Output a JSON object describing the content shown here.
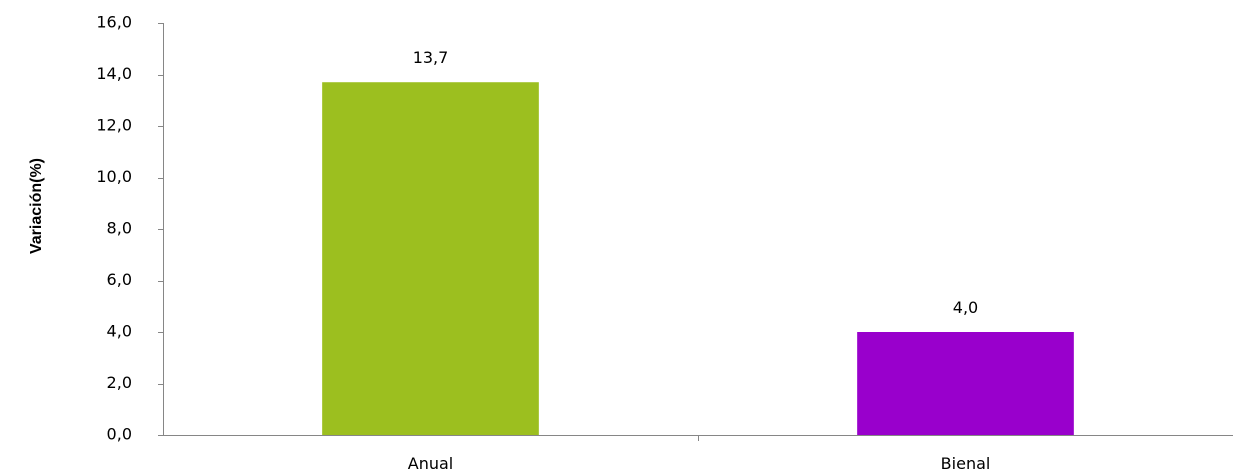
{
  "chart_data": {
    "type": "bar",
    "categories": [
      "Anual",
      "Bienal"
    ],
    "series": [
      {
        "values": [
          13.7,
          4.0
        ]
      }
    ],
    "data_labels": [
      "13,7",
      "4,0"
    ],
    "bar_colors": [
      "#9cbf1f",
      "#9900cc"
    ],
    "title": "",
    "xlabel": "",
    "ylabel": "Variación(%)",
    "ylim": [
      0,
      16
    ],
    "yticks": [
      0,
      2,
      4,
      6,
      8,
      10,
      12,
      14,
      16
    ],
    "ytick_labels": [
      "0,0",
      "2,0",
      "4,0",
      "6,0",
      "8,0",
      "10,0",
      "12,0",
      "14,0",
      "16,0"
    ],
    "grid": false,
    "legend": "none"
  }
}
